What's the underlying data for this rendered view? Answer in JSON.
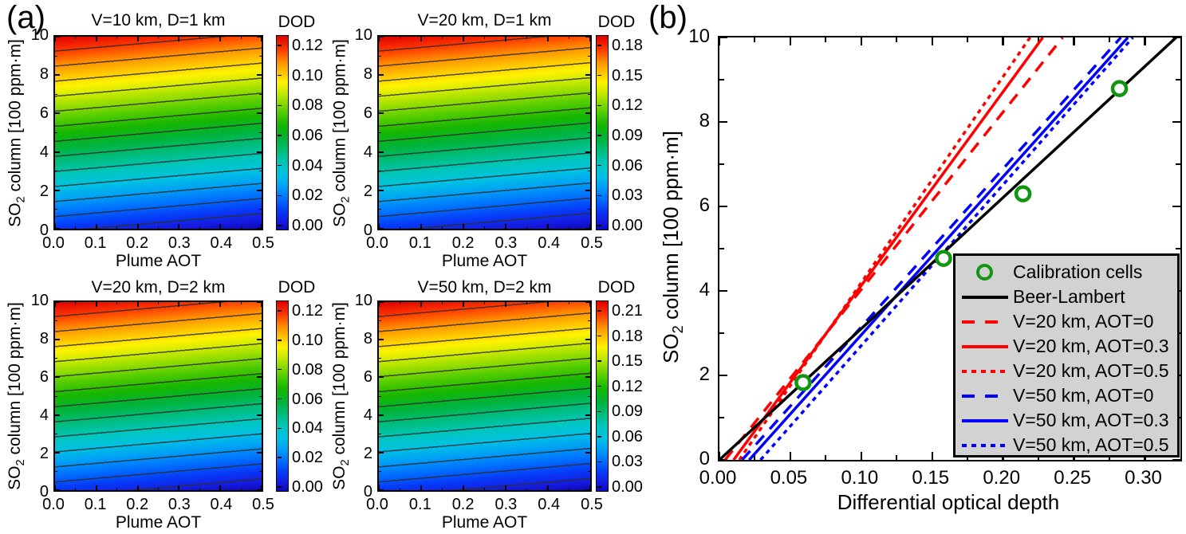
{
  "colors": {
    "red": "#FF0000",
    "blue": "#0000FF",
    "black": "#000000",
    "marker_green": "#129612",
    "legend_bg": "#D2D2D2"
  },
  "panel_a": {
    "label": "(a)",
    "xlabel": "Plume AOT",
    "ylabel": {
      "pre": "SO",
      "sub": "2",
      "post": " column [100 ppm·m]"
    },
    "colorbar_title": "DOD",
    "x_tick_labels": [
      "0.0",
      "0.1",
      "0.2",
      "0.3",
      "0.4",
      "0.5"
    ],
    "y_tick_labels": [
      "0",
      "2",
      "4",
      "6",
      "8",
      "10"
    ],
    "subplots": [
      {
        "title": "V=10 km, D=1 km",
        "colorbar_ticks": [
          "0.12",
          "0.10",
          "0.08",
          "0.06",
          "0.04",
          "0.02",
          "0.00"
        ]
      },
      {
        "title": "V=20 km, D=1 km",
        "colorbar_ticks": [
          "0.18",
          "0.15",
          "0.12",
          "0.09",
          "0.06",
          "0.03",
          "0.00"
        ]
      },
      {
        "title": "V=20 km, D=2 km",
        "colorbar_ticks": [
          "0.12",
          "0.10",
          "0.08",
          "0.06",
          "0.04",
          "0.02",
          "0.00"
        ]
      },
      {
        "title": "V=50 km, D=2 km",
        "colorbar_ticks": [
          "0.21",
          "0.18",
          "0.15",
          "0.12",
          "0.09",
          "0.06",
          "0.03",
          "0.00"
        ]
      }
    ]
  },
  "panel_b": {
    "label": "(b)",
    "xlabel": "Differential optical depth",
    "ylabel": {
      "pre": "SO",
      "sub": "2",
      "post": " column [100 ppm·m]"
    },
    "x_tick_labels": [
      "0.00",
      "0.05",
      "0.10",
      "0.15",
      "0.20",
      "0.25",
      "0.30"
    ],
    "x_tick_values": [
      0,
      0.05,
      0.1,
      0.15,
      0.2,
      0.25,
      0.3
    ],
    "y_tick_labels": [
      "0",
      "2",
      "4",
      "6",
      "8",
      "10"
    ],
    "y_tick_values": [
      0,
      2,
      4,
      6,
      8,
      10
    ],
    "xlim": [
      0,
      0.325
    ],
    "ylim": [
      0,
      10
    ],
    "lines": [
      {
        "name": "V=20 km, AOT=0",
        "color": "#FF0000",
        "dash": "long",
        "x_at_y0": 0.004,
        "x_at_ymax": 0.242
      },
      {
        "name": "V=20 km, AOT=0.5",
        "color": "#FF0000",
        "dash": "short",
        "x_at_y0": 0.014,
        "x_at_ymax": 0.219
      },
      {
        "name": "V=20 km, AOT=0.3",
        "color": "#FF0000",
        "dash": "solid",
        "x_at_y0": 0.01,
        "x_at_ymax": 0.228
      },
      {
        "name": "V=50 km, AOT=0",
        "color": "#0000FF",
        "dash": "long",
        "x_at_y0": 0.016,
        "x_at_ymax": 0.283
      },
      {
        "name": "V=50 km, AOT=0.5",
        "color": "#0000FF",
        "dash": "short",
        "x_at_y0": 0.029,
        "x_at_ymax": 0.2915
      },
      {
        "name": "V=50 km, AOT=0.3",
        "color": "#0000FF",
        "dash": "solid",
        "x_at_y0": 0.021,
        "x_at_ymax": 0.288
      },
      {
        "name": "Beer-Lambert",
        "color": "#000000",
        "dash": "solid",
        "x_at_y0": 0.0,
        "x_at_ymax": 0.322
      }
    ],
    "calibration_points": [
      [
        0.059,
        1.83
      ],
      [
        0.158,
        4.77
      ],
      [
        0.214,
        6.3
      ],
      [
        0.282,
        8.79
      ]
    ],
    "legend": {
      "entries": [
        {
          "label": "Calibration cells",
          "marker": "circle",
          "color": "#129612"
        },
        {
          "label": "Beer-Lambert",
          "marker": "line",
          "dash": "solid",
          "color": "#000000"
        },
        {
          "label": "V=20 km, AOT=0",
          "marker": "line",
          "dash": "long",
          "color": "#FF0000"
        },
        {
          "label": "V=20 km, AOT=0.3",
          "marker": "line",
          "dash": "solid",
          "color": "#FF0000"
        },
        {
          "label": "V=20 km, AOT=0.5",
          "marker": "line",
          "dash": "short",
          "color": "#FF0000"
        },
        {
          "label": "V=50 km, AOT=0",
          "marker": "line",
          "dash": "long",
          "color": "#0000FF"
        },
        {
          "label": "V=50 km, AOT=0.3",
          "marker": "line",
          "dash": "solid",
          "color": "#0000FF"
        },
        {
          "label": "V=50 km, AOT=0.5",
          "marker": "line",
          "dash": "short",
          "color": "#0000FF"
        }
      ]
    }
  },
  "chart_data": [
    {
      "type": "heatmap",
      "title": "V=10 km, D=1 km",
      "xlabel": "Plume AOT",
      "ylabel": "SO2 column [100 ppm·m]",
      "x_range": [
        0.0,
        0.5
      ],
      "y_range": [
        0,
        10
      ],
      "colorbar_label": "DOD",
      "colorbar_ticks": [
        0.0,
        0.02,
        0.04,
        0.06,
        0.08,
        0.1,
        0.12
      ],
      "colormap": "jet (blue low → red high)",
      "note": "DOD increases with SO2 column; contour isolines rise slightly with plume AOT"
    },
    {
      "type": "heatmap",
      "title": "V=20 km, D=1 km",
      "xlabel": "Plume AOT",
      "ylabel": "SO2 column [100 ppm·m]",
      "x_range": [
        0.0,
        0.5
      ],
      "y_range": [
        0,
        10
      ],
      "colorbar_label": "DOD",
      "colorbar_ticks": [
        0.0,
        0.03,
        0.06,
        0.09,
        0.12,
        0.15,
        0.18
      ],
      "colormap": "jet (blue low → red high)",
      "note": "DOD increases with SO2 column; contour isolines rise slightly with plume AOT"
    },
    {
      "type": "heatmap",
      "title": "V=20 km, D=2 km",
      "xlabel": "Plume AOT",
      "ylabel": "SO2 column [100 ppm·m]",
      "x_range": [
        0.0,
        0.5
      ],
      "y_range": [
        0,
        10
      ],
      "colorbar_label": "DOD",
      "colorbar_ticks": [
        0.0,
        0.02,
        0.04,
        0.06,
        0.08,
        0.1,
        0.12
      ],
      "colormap": "jet (blue low → red high)",
      "note": "DOD increases with SO2 column; contour isolines rise with plume AOT"
    },
    {
      "type": "heatmap",
      "title": "V=50 km, D=2 km",
      "xlabel": "Plume AOT",
      "ylabel": "SO2 column [100 ppm·m]",
      "x_range": [
        0.0,
        0.5
      ],
      "y_range": [
        0,
        10
      ],
      "colorbar_label": "DOD",
      "colorbar_ticks": [
        0.0,
        0.03,
        0.06,
        0.09,
        0.12,
        0.15,
        0.18,
        0.21
      ],
      "colormap": "jet (blue low → red high)",
      "note": "DOD increases with SO2 column; contour isolines nearly horizontal"
    },
    {
      "type": "line",
      "title": "(b) SO2 column vs differential optical depth",
      "xlabel": "Differential optical depth",
      "ylabel": "SO2 column [100 ppm·m]",
      "xlim": [
        0,
        0.325
      ],
      "ylim": [
        0,
        10
      ],
      "grid": false,
      "legend_position": "lower right",
      "series": [
        {
          "name": "Beer-Lambert",
          "style": "solid",
          "color": "black",
          "points": [
            [
              0.0,
              0
            ],
            [
              0.322,
              10
            ]
          ]
        },
        {
          "name": "V=20 km, AOT=0",
          "style": "long-dash",
          "color": "red",
          "points": [
            [
              0.004,
              0
            ],
            [
              0.242,
              10
            ]
          ]
        },
        {
          "name": "V=20 km, AOT=0.3",
          "style": "solid",
          "color": "red",
          "points": [
            [
              0.01,
              0
            ],
            [
              0.228,
              10
            ]
          ]
        },
        {
          "name": "V=20 km, AOT=0.5",
          "style": "short-dash",
          "color": "red",
          "points": [
            [
              0.014,
              0
            ],
            [
              0.219,
              10
            ]
          ]
        },
        {
          "name": "V=50 km, AOT=0",
          "style": "long-dash",
          "color": "blue",
          "points": [
            [
              0.016,
              0
            ],
            [
              0.283,
              10
            ]
          ]
        },
        {
          "name": "V=50 km, AOT=0.3",
          "style": "solid",
          "color": "blue",
          "points": [
            [
              0.021,
              0
            ],
            [
              0.288,
              10
            ]
          ]
        },
        {
          "name": "V=50 km, AOT=0.5",
          "style": "short-dash",
          "color": "blue",
          "points": [
            [
              0.029,
              0
            ],
            [
              0.2915,
              10
            ]
          ]
        }
      ],
      "scatter": {
        "name": "Calibration cells",
        "marker": "open circle",
        "color": "green",
        "points": [
          [
            0.059,
            1.83
          ],
          [
            0.158,
            4.77
          ],
          [
            0.214,
            6.3
          ],
          [
            0.282,
            8.79
          ]
        ]
      }
    }
  ]
}
